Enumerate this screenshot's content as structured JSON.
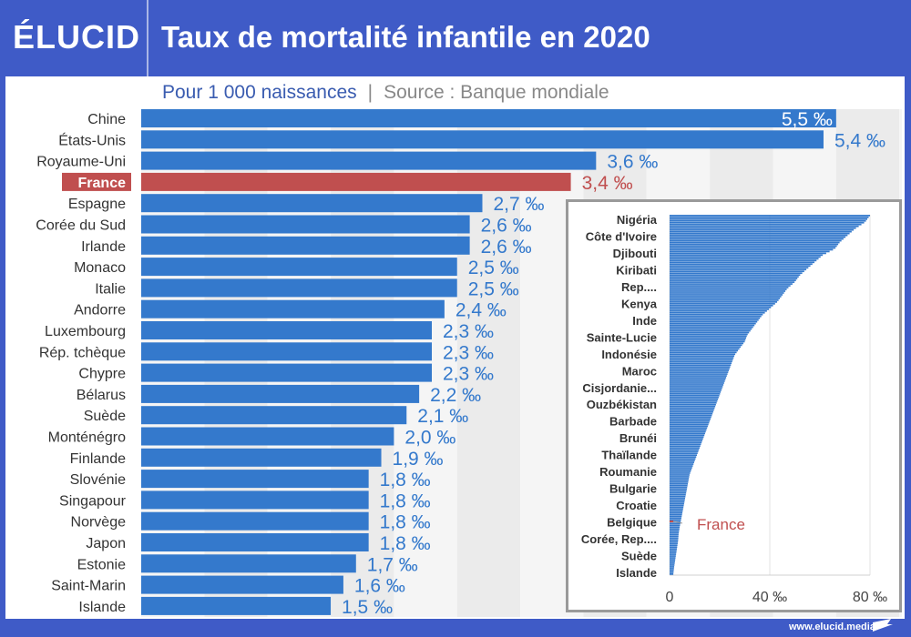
{
  "header": {
    "logo": "ÉLUCID",
    "title": "Taux de mortalité infantile en 2020"
  },
  "subtitle": {
    "unit": "Pour 1 000 naissances",
    "separator": "|",
    "source": "Source : Banque mondiale"
  },
  "footer": {
    "url": "www.elucid.media"
  },
  "colors": {
    "bar": "#3479cc",
    "highlight": "#c04f4f",
    "label_blue": "#3479cc",
    "band_light": "#f5f5f5",
    "band_dark": "#ebebeb",
    "header_bg": "#3f5bc7"
  },
  "chart_data": [
    {
      "type": "bar",
      "orientation": "horizontal",
      "title": "Taux de mortalité infantile en 2020",
      "subtitle": "Pour 1 000 naissances | Source : Banque mondiale",
      "unit": "‰",
      "highlight": "France",
      "xlim": [
        0,
        5.8
      ],
      "grid": true,
      "categories": [
        "Chine",
        "États-Unis",
        "Royaume-Uni",
        "France",
        "Espagne",
        "Corée du Sud",
        "Irlande",
        "Monaco",
        "Italie",
        "Andorre",
        "Luxembourg",
        "Rép. tchèque",
        "Chypre",
        "Bélarus",
        "Suède",
        "Monténégro",
        "Finlande",
        "Slovénie",
        "Singapour",
        "Norvège",
        "Japon",
        "Estonie",
        "Saint-Marin",
        "Islande"
      ],
      "values": [
        5.5,
        5.4,
        3.6,
        3.4,
        2.7,
        2.6,
        2.6,
        2.5,
        2.5,
        2.4,
        2.3,
        2.3,
        2.3,
        2.2,
        2.1,
        2.0,
        1.9,
        1.8,
        1.8,
        1.8,
        1.8,
        1.7,
        1.6,
        1.5
      ],
      "labels": [
        "5,5 ‰",
        "5,4 ‰",
        "3,6 ‰",
        "3,4 ‰",
        "2,7 ‰",
        "2,6 ‰",
        "2,6 ‰",
        "2,5 ‰",
        "2,5 ‰",
        "2,4 ‰",
        "2,3 ‰",
        "2,3 ‰",
        "2,3 ‰",
        "2,2 ‰",
        "2,1 ‰",
        "2,0 ‰",
        "1,9 ‰",
        "1,8 ‰",
        "1,8 ‰",
        "1,8 ‰",
        "1,8 ‰",
        "1,7 ‰",
        "1,6 ‰",
        "1,5 ‰"
      ]
    },
    {
      "type": "bar",
      "orientation": "horizontal",
      "title": "inset: all countries",
      "xlim": [
        0,
        80
      ],
      "xticks": [
        0,
        40,
        80
      ],
      "xtick_labels": [
        "0",
        "40 ‰",
        "80 ‰"
      ],
      "category_labels": [
        "Nigéria",
        "Côte d'Ivoire",
        "Djibouti",
        "Kiribati",
        "Rep....",
        "Kenya",
        "Inde",
        "Sainte-Lucie",
        "Indonésie",
        "Maroc",
        "Cisjordanie...",
        "Ouzbékistan",
        "Barbade",
        "Brunéi",
        "Thaïlande",
        "Roumanie",
        "Bulgarie",
        "Croatie",
        "Belgique",
        "Corée, Rep....",
        "Suède",
        "Islande"
      ],
      "annotation": {
        "label": "France",
        "value": 3.4
      },
      "profile_values": [
        80,
        78,
        74,
        71,
        68,
        66,
        61,
        58,
        55,
        52,
        50,
        47,
        45,
        43,
        40,
        37,
        35,
        33,
        31,
        30,
        28,
        26,
        25,
        24,
        23,
        22,
        21,
        20,
        19,
        18,
        17,
        16,
        15,
        14,
        13,
        12,
        11,
        10,
        9,
        8,
        7.5,
        7,
        6.5,
        6,
        5.5,
        5,
        4.5,
        4,
        3.6,
        3.4,
        3,
        2.6,
        2.2,
        1.8,
        1.5
      ],
      "series_count": 200
    }
  ]
}
